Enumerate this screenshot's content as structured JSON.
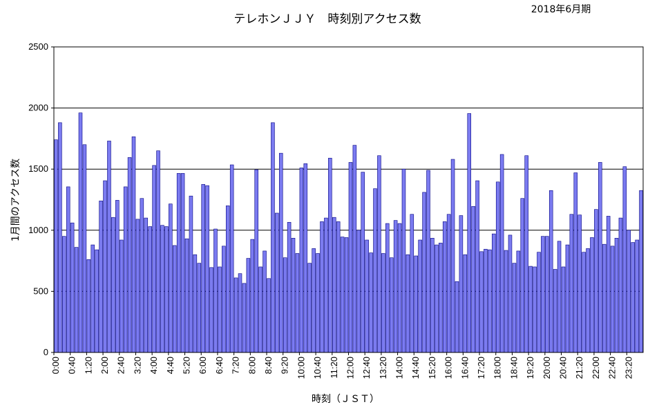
{
  "chart_data": {
    "type": "bar",
    "title": "テレホンＪＪＹ　時刻別アクセス数",
    "subtitle": "2018年6月期",
    "xlabel": "時刻（ＪＳＴ）",
    "ylabel": "1月間のアクセス数",
    "ylim": [
      0,
      2500
    ],
    "yticks": [
      0,
      500,
      1000,
      1500,
      2000,
      2500
    ],
    "grid": true,
    "legend": "none",
    "colors": {
      "bar_fill": "#7b7bf0",
      "bar_stroke": "#000080",
      "grid": "#000000"
    },
    "x_tick_labels": [
      "0:00",
      "0:40",
      "1:20",
      "2:00",
      "2:40",
      "3:20",
      "4:00",
      "4:40",
      "5:20",
      "6:00",
      "6:40",
      "7:20",
      "8:00",
      "8:40",
      "9:20",
      "10:00",
      "10:40",
      "11:20",
      "12:00",
      "12:40",
      "13:20",
      "14:00",
      "14:40",
      "15:20",
      "16:00",
      "16:40",
      "17:20",
      "18:00",
      "18:40",
      "19:20",
      "20:00",
      "20:40",
      "21:20",
      "22:00",
      "22:40",
      "23:20"
    ],
    "values": [
      1740,
      1880,
      950,
      1355,
      1060,
      860,
      1960,
      1700,
      760,
      880,
      840,
      1240,
      1405,
      1730,
      1105,
      1245,
      920,
      1355,
      1595,
      1765,
      1090,
      1260,
      1100,
      1030,
      1530,
      1650,
      1040,
      1030,
      1215,
      875,
      1465,
      1465,
      930,
      1280,
      800,
      730,
      1375,
      1365,
      695,
      1010,
      700,
      870,
      1200,
      1535,
      610,
      645,
      565,
      770,
      925,
      1495,
      700,
      830,
      605,
      1880,
      1140,
      1630,
      775,
      1065,
      935,
      810,
      1510,
      1545,
      730,
      850,
      810,
      1070,
      1100,
      1590,
      1105,
      1070,
      945,
      940,
      1555,
      1695,
      1000,
      1475,
      920,
      815,
      1340,
      1610,
      810,
      1055,
      775,
      1080,
      1055,
      1500,
      800,
      1130,
      790,
      920,
      1310,
      1490,
      935,
      880,
      895,
      1070,
      1130,
      1580,
      580,
      1120,
      800,
      1955,
      1195,
      1405,
      825,
      845,
      840,
      970,
      1395,
      1620,
      835,
      960,
      730,
      830,
      1260,
      1610,
      705,
      700,
      820,
      950,
      950,
      1325,
      680,
      910,
      700,
      880,
      1130,
      1470,
      1125,
      820,
      850,
      940,
      1170,
      1555,
      885,
      1115,
      870,
      935,
      1100,
      1520,
      1000,
      900,
      920,
      1325
    ]
  }
}
